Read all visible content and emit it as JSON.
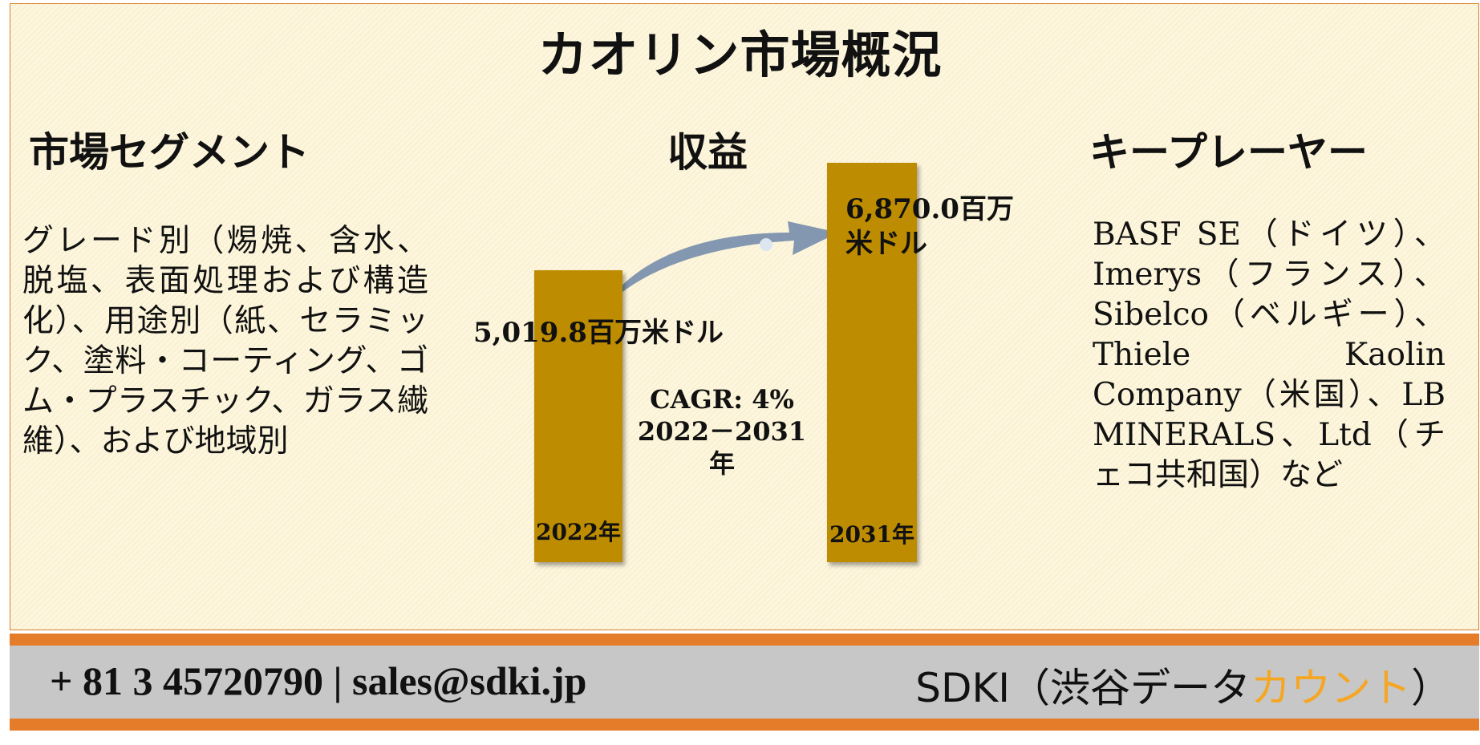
{
  "title": "カオリン市場概況",
  "segments": {
    "heading": "市場セグメント",
    "text": "グレード別（焬焼、含水、脱塩、表面処理および構造化）、用途別（紙、セラミック、塗料・コーティング、ゴム・プラスチック、ガラス繊維）、および地域別"
  },
  "revenue": {
    "heading": "収益",
    "cagr_line1": "CAGR: 4%",
    "cagr_line2": "2022－2031年"
  },
  "chart_data": {
    "type": "bar",
    "categories": [
      "2022年",
      "2031年"
    ],
    "values": [
      5019.8,
      6870.0
    ],
    "value_labels": [
      "5,019.8百万米ドル",
      "6,870.0百万米ドル"
    ],
    "value_label_2031_line1": "6,870.0百万",
    "value_label_2031_line2": "米ドル",
    "bar_color": "#bd8c00",
    "arrow_color": "#8497b0"
  },
  "players": {
    "heading": "キープレーヤー",
    "text": "BASF SE（ドイツ）、Imerys（フランス）、Sibelco（ベルギー）、Thiele Kaolin Company（米国）、LB MINERALS、Ltd（チェコ共和国）など"
  },
  "footer": {
    "contact": "+ 81 3 45720790 | sales@sdki.jp",
    "brand_main": "SDKI（渋谷データ",
    "brand_accent": "カウント",
    "brand_end": "）",
    "accent_color": "#f5a623",
    "stripe_color": "#e57c29"
  }
}
